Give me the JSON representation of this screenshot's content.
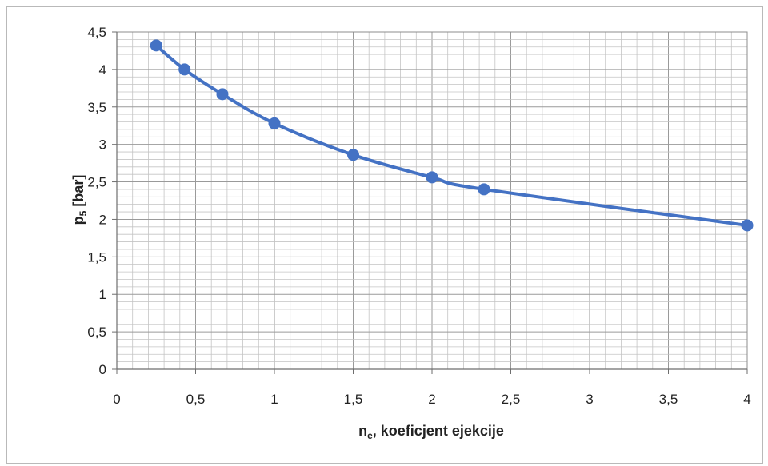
{
  "chart_data": {
    "type": "line",
    "title": "",
    "xlabel": {
      "main": "n",
      "sub": "e",
      "rest": ", koeficjent ejekcije"
    },
    "ylabel": {
      "main": "p",
      "sub": "5",
      "rest": " [bar]"
    },
    "xlim": [
      0,
      4
    ],
    "ylim": [
      0,
      4.5
    ],
    "x_ticks": [
      "0",
      "0,5",
      "1",
      "1,5",
      "2",
      "2,5",
      "3",
      "3,5",
      "4"
    ],
    "y_ticks": [
      "0",
      "0,5",
      "1",
      "1,5",
      "2",
      "2,5",
      "3",
      "3,5",
      "4",
      "4,5"
    ],
    "grid": true,
    "legend": "none",
    "series": [
      {
        "color": "#4472c4",
        "x": [
          0.25,
          0.43,
          0.67,
          1.0,
          1.5,
          2.0,
          2.33,
          4.0
        ],
        "y": [
          4.32,
          4.0,
          3.67,
          3.28,
          2.86,
          2.56,
          2.4,
          1.92
        ]
      }
    ]
  }
}
